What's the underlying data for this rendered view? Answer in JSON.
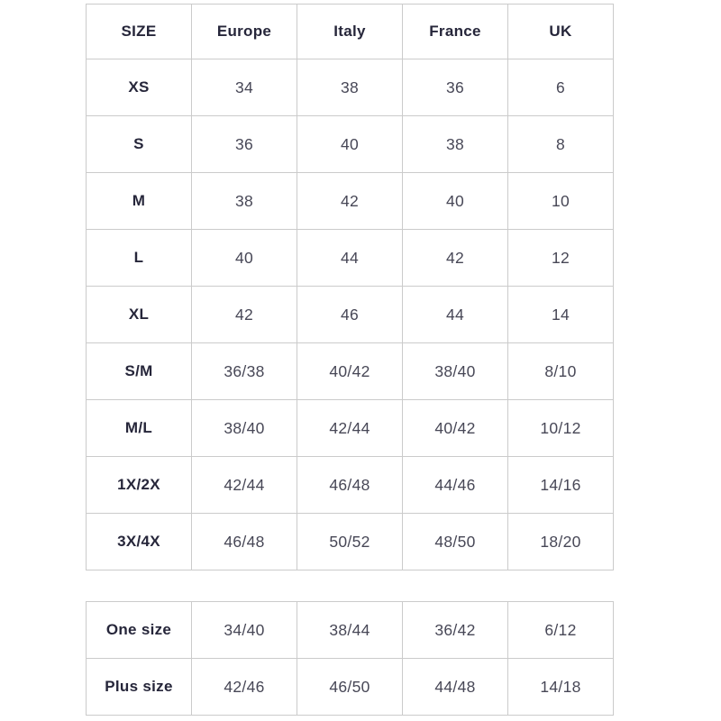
{
  "colors": {
    "border": "#cbcbcb",
    "header_text": "#26263a",
    "cell_text": "#474756",
    "background": "#ffffff"
  },
  "size_chart": {
    "columns": [
      "SIZE",
      "Europe",
      "Italy",
      "France",
      "UK"
    ],
    "rows": [
      {
        "size": "XS",
        "values": [
          "34",
          "38",
          "36",
          "6"
        ]
      },
      {
        "size": "S",
        "values": [
          "36",
          "40",
          "38",
          "8"
        ]
      },
      {
        "size": "M",
        "values": [
          "38",
          "42",
          "40",
          "10"
        ]
      },
      {
        "size": "L",
        "values": [
          "40",
          "44",
          "42",
          "12"
        ]
      },
      {
        "size": "XL",
        "values": [
          "42",
          "46",
          "44",
          "14"
        ]
      },
      {
        "size": "S/M",
        "values": [
          "36/38",
          "40/42",
          "38/40",
          "8/10"
        ]
      },
      {
        "size": "M/L",
        "values": [
          "38/40",
          "42/44",
          "40/42",
          "10/12"
        ]
      },
      {
        "size": "1X/2X",
        "values": [
          "42/44",
          "46/48",
          "44/46",
          "14/16"
        ]
      },
      {
        "size": "3X/4X",
        "values": [
          "46/48",
          "50/52",
          "48/50",
          "18/20"
        ]
      }
    ]
  },
  "combined_chart": {
    "rows": [
      {
        "size": "One size",
        "values": [
          "34/40",
          "38/44",
          "36/42",
          "6/12"
        ]
      },
      {
        "size": "Plus size",
        "values": [
          "42/46",
          "46/50",
          "44/48",
          "14/18"
        ]
      }
    ]
  }
}
